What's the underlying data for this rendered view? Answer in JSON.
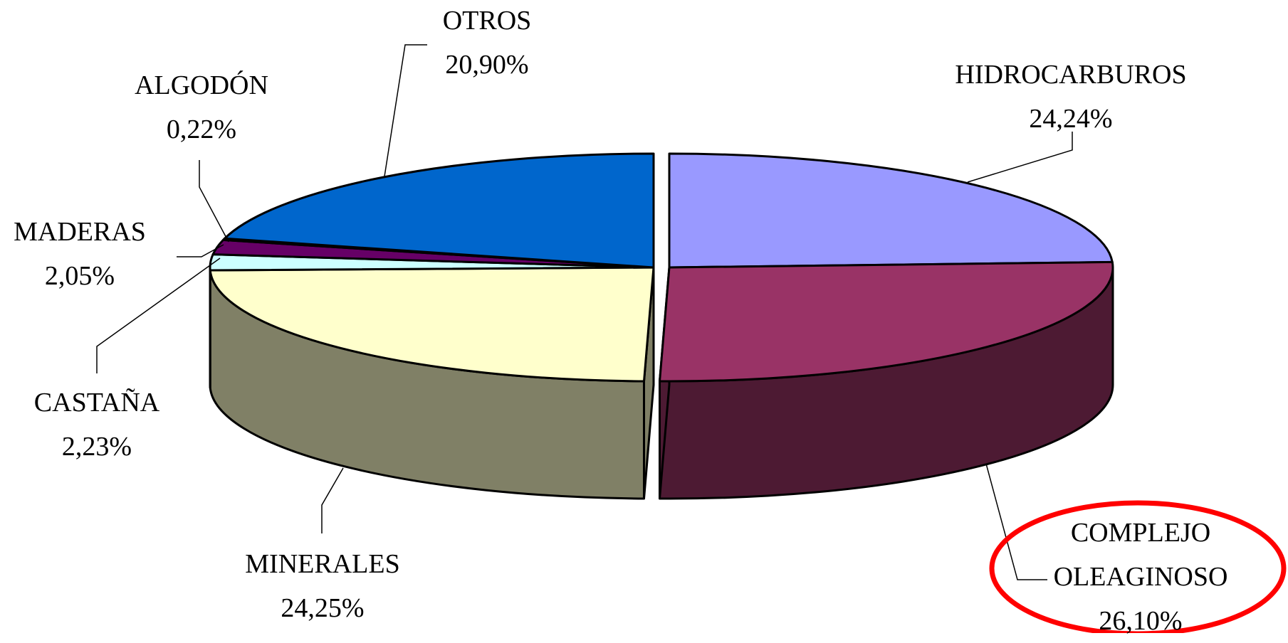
{
  "chart_data": {
    "type": "pie3d",
    "categories": [
      "HIDROCARBUROS",
      "COMPLEJO OLEAGINOSO",
      "MINERALES",
      "CASTAÑA",
      "MADERAS",
      "ALGODÓN",
      "OTROS"
    ],
    "values": [
      24.24,
      26.1,
      24.25,
      2.23,
      2.05,
      0.22,
      20.9
    ],
    "value_labels": [
      "24,24%",
      "26,10%",
      "24,25%",
      "2,23%",
      "2,05%",
      "0,22%",
      "20,90%"
    ],
    "colors": [
      "#9999ff",
      "#993366",
      "#ffffcc",
      "#ccffff",
      "#660066",
      "#330033",
      "#0066cc"
    ]
  }
}
